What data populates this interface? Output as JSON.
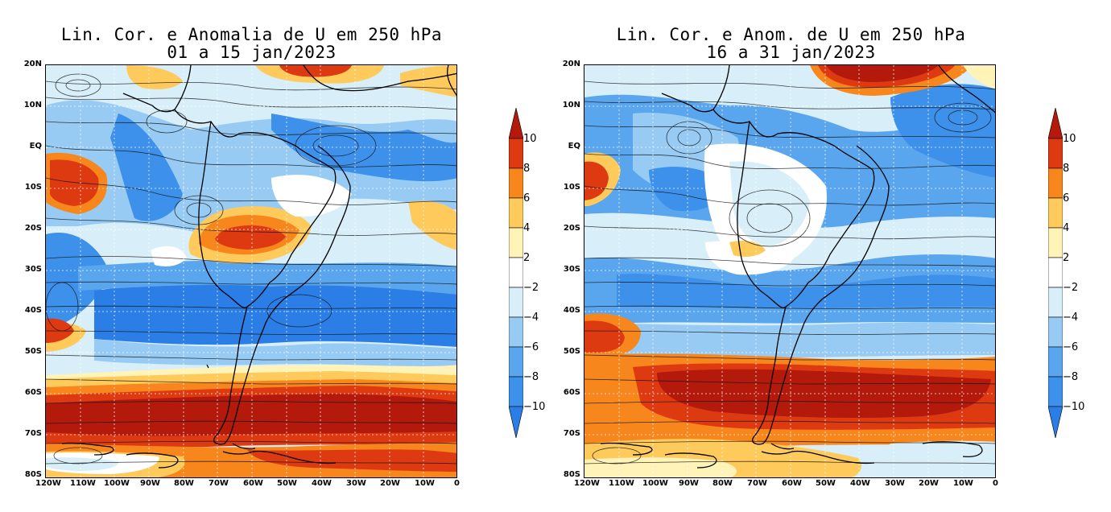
{
  "colors": {
    "neg10": "#2a7ee6",
    "neg8": "#3e91ea",
    "neg6": "#5aa6ee",
    "neg4": "#98cbf3",
    "neg2": "#d8eef9",
    "zero": "#ffffff",
    "pos2": "#fff3b8",
    "pos4": "#ffca5c",
    "pos6": "#f7861d",
    "pos8": "#de3a12",
    "pos10": "#b31a0c"
  },
  "axes": {
    "lat_labels": [
      "20N",
      "10N",
      "EQ",
      "10S",
      "20S",
      "30S",
      "40S",
      "50S",
      "60S",
      "70S",
      "80S"
    ],
    "lon_labels": [
      "120W",
      "110W",
      "100W",
      "90W",
      "80W",
      "70W",
      "60W",
      "50W",
      "40W",
      "30W",
      "20W",
      "10W",
      "0"
    ]
  },
  "colorbar": {
    "levels": [
      "10",
      "8",
      "6",
      "4",
      "2",
      "−2",
      "−4",
      "−6",
      "−8",
      "−10"
    ]
  },
  "panels": [
    {
      "title_line1": "Lin. Cor. e Anomalia de U em 250 hPa",
      "title_line2": "01 a 15 jan/2023"
    },
    {
      "title_line1": "Lin. Cor. e Anom. de U em 250 hPa",
      "title_line2": "16 a 31 jan/2023"
    }
  ]
}
